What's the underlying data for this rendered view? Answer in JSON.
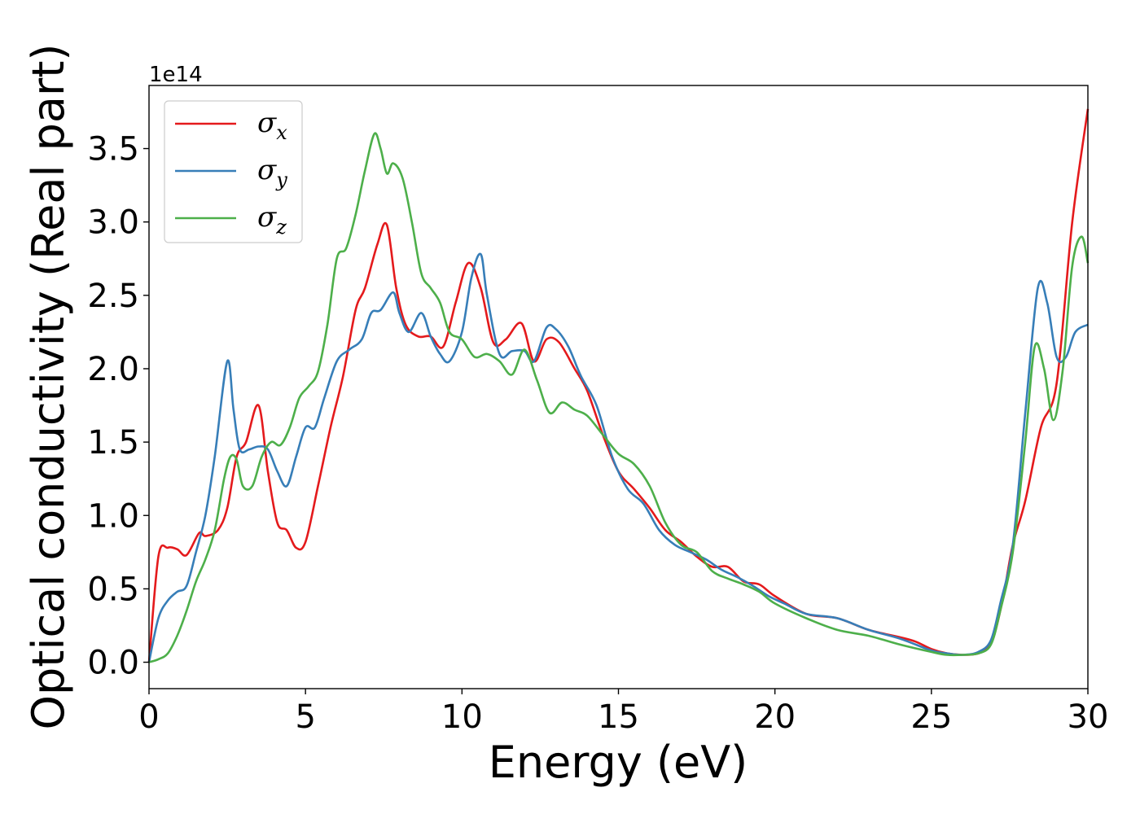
{
  "chart_data": {
    "type": "line",
    "xlabel": "Energy (eV)",
    "ylabel": "Optical conductivity (Real part)",
    "y_offset_label": "1e14",
    "xlim": [
      0,
      30
    ],
    "ylim": [
      -0.18,
      3.93
    ],
    "x_ticks": [
      0,
      5,
      10,
      15,
      20,
      25,
      30
    ],
    "x_tick_labels": [
      "0",
      "5",
      "10",
      "15",
      "20",
      "25",
      "30"
    ],
    "y_ticks": [
      0.0,
      0.5,
      1.0,
      1.5,
      2.0,
      2.5,
      3.0,
      3.5
    ],
    "y_tick_labels": [
      "0.0",
      "0.5",
      "1.0",
      "1.5",
      "2.0",
      "2.5",
      "3.0",
      "3.5"
    ],
    "grid": false,
    "legend_position": "top-left",
    "series": [
      {
        "name": "σx",
        "legend_symbol": "σ",
        "legend_subscript": "x",
        "color": "#e41a1c",
        "x": [
          0,
          0.3,
          0.6,
          0.9,
          1.2,
          1.6,
          1.8,
          2.2,
          2.5,
          2.8,
          3.1,
          3.5,
          3.8,
          4.1,
          4.4,
          4.7,
          5.0,
          5.4,
          5.8,
          6.2,
          6.6,
          6.9,
          7.3,
          7.6,
          7.9,
          8.2,
          8.6,
          9.0,
          9.4,
          9.8,
          10.2,
          10.6,
          11.0,
          11.4,
          11.9,
          12.3,
          12.7,
          13.1,
          13.6,
          14.0,
          14.5,
          15.0,
          15.5,
          16.0,
          16.5,
          17.0,
          17.5,
          18.0,
          18.5,
          19.0,
          19.5,
          20.0,
          21.0,
          22.0,
          23.0,
          24.0,
          24.5,
          25.0,
          25.5,
          26.0,
          26.5,
          26.8,
          27.0,
          27.3,
          27.6,
          28.0,
          28.5,
          29.0,
          29.5,
          30.0
        ],
        "y": [
          0.0,
          0.72,
          0.78,
          0.77,
          0.73,
          0.88,
          0.86,
          0.9,
          1.05,
          1.4,
          1.5,
          1.75,
          1.3,
          0.95,
          0.9,
          0.78,
          0.82,
          1.2,
          1.6,
          1.95,
          2.4,
          2.55,
          2.85,
          2.98,
          2.55,
          2.3,
          2.22,
          2.22,
          2.15,
          2.45,
          2.72,
          2.55,
          2.18,
          2.2,
          2.31,
          2.05,
          2.2,
          2.18,
          2.0,
          1.85,
          1.55,
          1.3,
          1.18,
          1.05,
          0.9,
          0.82,
          0.72,
          0.65,
          0.65,
          0.55,
          0.53,
          0.45,
          0.33,
          0.3,
          0.22,
          0.17,
          0.14,
          0.09,
          0.06,
          0.05,
          0.06,
          0.1,
          0.18,
          0.45,
          0.8,
          1.1,
          1.6,
          1.9,
          3.0,
          3.77
        ]
      },
      {
        "name": "σy",
        "legend_symbol": "σ",
        "legend_subscript": "y",
        "color": "#377eb8",
        "x": [
          0,
          0.3,
          0.6,
          0.9,
          1.2,
          1.5,
          1.8,
          2.1,
          2.5,
          2.7,
          2.9,
          3.2,
          3.5,
          3.8,
          4.1,
          4.4,
          4.7,
          5.0,
          5.3,
          5.6,
          6.0,
          6.4,
          6.8,
          7.1,
          7.4,
          7.8,
          8.0,
          8.3,
          8.7,
          9.0,
          9.3,
          9.6,
          10.0,
          10.3,
          10.6,
          10.8,
          11.2,
          11.6,
          12.0,
          12.3,
          12.7,
          13.0,
          13.4,
          13.8,
          14.3,
          14.8,
          15.3,
          15.8,
          16.3,
          16.8,
          17.3,
          17.8,
          18.3,
          18.8,
          19.3,
          19.8,
          20.3,
          21.0,
          22.0,
          23.0,
          24.0,
          25.0,
          25.5,
          26.0,
          26.5,
          26.9,
          27.2,
          27.6,
          28.0,
          28.4,
          28.7,
          29.0,
          29.3,
          29.6,
          30.0
        ],
        "y": [
          0.0,
          0.3,
          0.42,
          0.48,
          0.52,
          0.75,
          1.0,
          1.4,
          2.05,
          1.72,
          1.45,
          1.45,
          1.47,
          1.45,
          1.3,
          1.2,
          1.4,
          1.6,
          1.6,
          1.8,
          2.05,
          2.13,
          2.2,
          2.38,
          2.4,
          2.52,
          2.38,
          2.25,
          2.38,
          2.22,
          2.1,
          2.05,
          2.25,
          2.62,
          2.78,
          2.5,
          2.1,
          2.12,
          2.12,
          2.05,
          2.28,
          2.27,
          2.15,
          1.95,
          1.75,
          1.4,
          1.18,
          1.08,
          0.9,
          0.8,
          0.75,
          0.7,
          0.63,
          0.58,
          0.52,
          0.45,
          0.4,
          0.33,
          0.3,
          0.22,
          0.16,
          0.08,
          0.06,
          0.05,
          0.07,
          0.15,
          0.4,
          0.8,
          1.7,
          2.55,
          2.45,
          2.08,
          2.08,
          2.25,
          2.3
        ]
      },
      {
        "name": "σz",
        "legend_symbol": "σ",
        "legend_subscript": "z",
        "color": "#4daf4a",
        "x": [
          0,
          0.3,
          0.6,
          0.9,
          1.2,
          1.5,
          1.8,
          2.1,
          2.4,
          2.6,
          2.8,
          3.0,
          3.3,
          3.6,
          3.9,
          4.2,
          4.5,
          4.8,
          5.1,
          5.4,
          5.7,
          6.0,
          6.3,
          6.6,
          6.9,
          7.2,
          7.4,
          7.6,
          7.8,
          8.1,
          8.4,
          8.7,
          9.0,
          9.3,
          9.6,
          10.0,
          10.4,
          10.8,
          11.2,
          11.6,
          12.0,
          12.4,
          12.8,
          13.2,
          13.6,
          14.0,
          14.5,
          15.0,
          15.5,
          16.0,
          16.5,
          17.0,
          17.5,
          18.0,
          18.5,
          19.0,
          19.5,
          20.0,
          21.0,
          22.0,
          23.0,
          24.0,
          25.0,
          25.5,
          26.0,
          26.5,
          26.9,
          27.2,
          27.6,
          28.0,
          28.3,
          28.6,
          28.9,
          29.2,
          29.5,
          29.8,
          30.0
        ],
        "y": [
          0.0,
          0.02,
          0.06,
          0.18,
          0.35,
          0.55,
          0.7,
          0.9,
          1.25,
          1.4,
          1.38,
          1.2,
          1.2,
          1.4,
          1.5,
          1.48,
          1.6,
          1.8,
          1.88,
          1.98,
          2.3,
          2.75,
          2.82,
          3.05,
          3.35,
          3.6,
          3.5,
          3.33,
          3.4,
          3.3,
          3.0,
          2.65,
          2.55,
          2.45,
          2.25,
          2.2,
          2.08,
          2.1,
          2.05,
          1.96,
          2.13,
          1.92,
          1.7,
          1.77,
          1.72,
          1.68,
          1.55,
          1.42,
          1.35,
          1.2,
          0.95,
          0.8,
          0.75,
          0.62,
          0.57,
          0.53,
          0.48,
          0.4,
          0.3,
          0.22,
          0.18,
          0.12,
          0.07,
          0.05,
          0.05,
          0.06,
          0.12,
          0.35,
          0.75,
          1.5,
          2.15,
          2.0,
          1.65,
          2.0,
          2.7,
          2.9,
          2.72
        ]
      }
    ]
  }
}
